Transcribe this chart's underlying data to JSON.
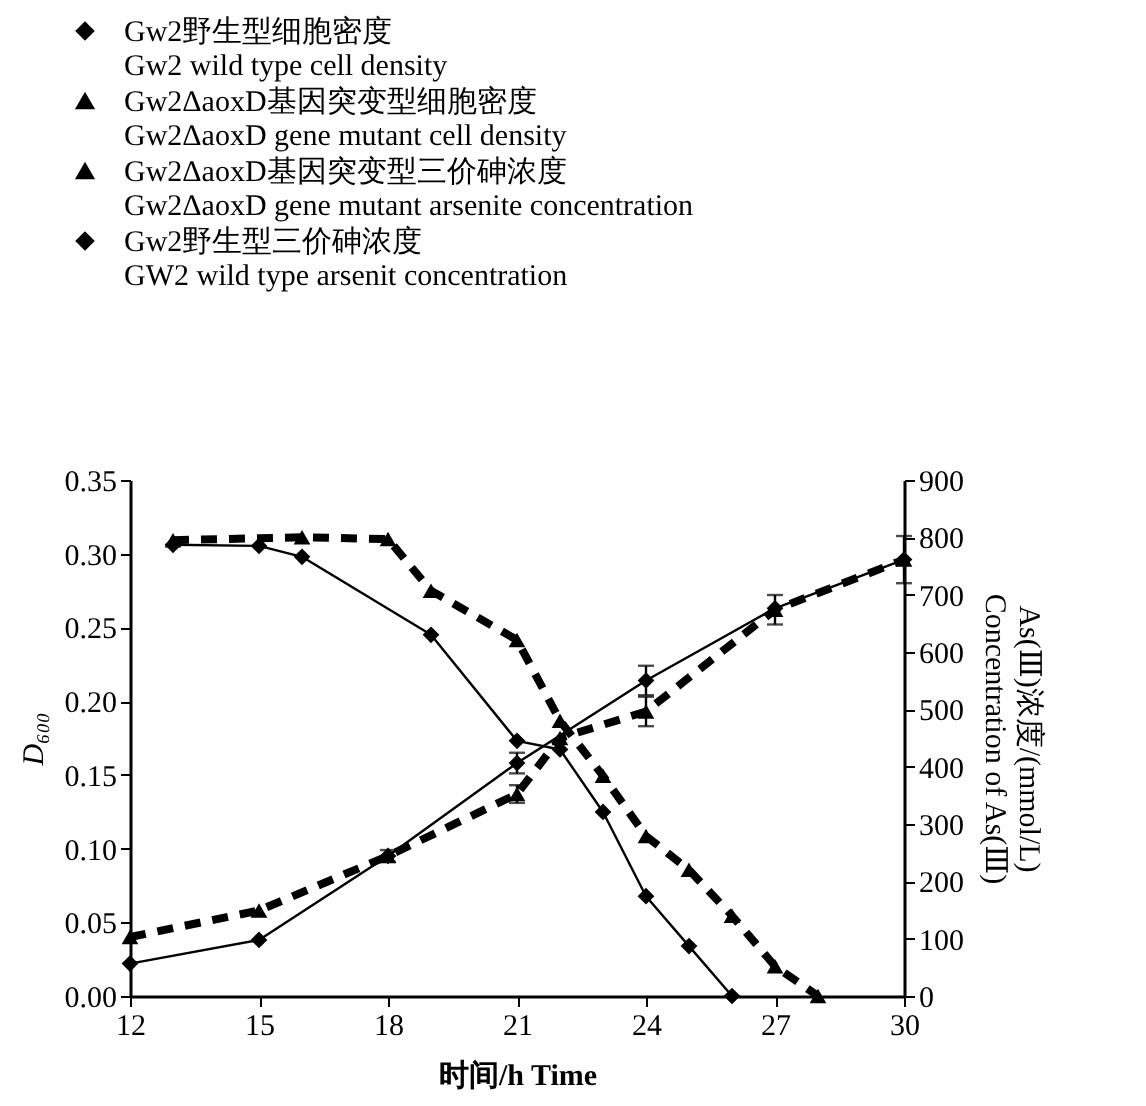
{
  "chart_data": {
    "type": "line",
    "xlabel": "时间/h Time",
    "ylabel": "D₆₀₀",
    "y2label": "As(Ⅲ)浓度/(mmol/L)\nConcentration of As(Ⅲ)",
    "xlim": [
      12,
      30
    ],
    "xticks": [
      12,
      15,
      18,
      21,
      24,
      27,
      30
    ],
    "ylim": [
      0,
      0.35
    ],
    "yticks": [
      {
        "value": 0,
        "label": "0.00"
      },
      {
        "value": 0.05,
        "label": "0.05"
      },
      {
        "value": 0.1,
        "label": "0.10"
      },
      {
        "value": 0.15,
        "label": "0.15"
      },
      {
        "value": 0.2,
        "label": "0.20"
      },
      {
        "value": 0.25,
        "label": "0.25"
      },
      {
        "value": 0.3,
        "label": "0.30"
      },
      {
        "value": 0.35,
        "label": "0.35"
      }
    ],
    "y2lim": [
      0,
      900
    ],
    "y2ticks": [
      0,
      100,
      200,
      300,
      400,
      500,
      600,
      700,
      800,
      900
    ],
    "legend": "top left",
    "grid": false,
    "series": [
      {
        "name": "Gw2野生型细胞密度\nGw2 wild type cell density",
        "color": "#000000",
        "marker": "diamond",
        "line_style": "solid",
        "x": [
          12,
          15,
          18,
          21,
          24,
          27,
          30
        ],
        "values": [
          0.022,
          0.038,
          0.095,
          0.158,
          0.214,
          0.263,
          0.296
        ],
        "errors": [
          null,
          null,
          0.004,
          0.007,
          0.01,
          null,
          null
        ]
      },
      {
        "name": "Gw2ΔaoxD基因突变型细胞密度\nGw2ΔaoxD gene mutant cell density",
        "color": "#000000",
        "marker": "triangle",
        "line_style": "dashed",
        "x": [
          12,
          15,
          18,
          21,
          22,
          24,
          27,
          30
        ],
        "values": [
          0.04,
          0.058,
          0.095,
          0.137,
          0.175,
          0.193,
          0.262,
          0.296
        ],
        "errors": [
          null,
          null,
          null,
          0.006,
          null,
          0.01,
          0.01,
          0.016
        ]
      },
      {
        "name": "Gw2ΔaoxD基因突变型三价砷浓度\nGw2ΔaoxD gene mutant arsenite concentration",
        "color": "#000000",
        "marker": "triangle",
        "line_style": "dashed",
        "axis": "y2",
        "x": [
          13,
          16,
          18,
          19,
          21,
          22,
          23,
          24,
          25,
          26,
          27,
          28
        ],
        "values": [
          795,
          800,
          797,
          707,
          621,
          480,
          384,
          279,
          220,
          140,
          52,
          0
        ]
      },
      {
        "name": "Gw2野生型三价砷浓度\nGW2 wild type arsenit concentration",
        "color": "#000000",
        "marker": "diamond",
        "line_style": "solid",
        "axis": "y2",
        "x": [
          13,
          15,
          16,
          19,
          21,
          22,
          23,
          24,
          25,
          26
        ],
        "values": [
          787,
          785,
          766,
          630,
          445,
          430,
          321,
          174,
          87,
          0
        ]
      }
    ]
  }
}
